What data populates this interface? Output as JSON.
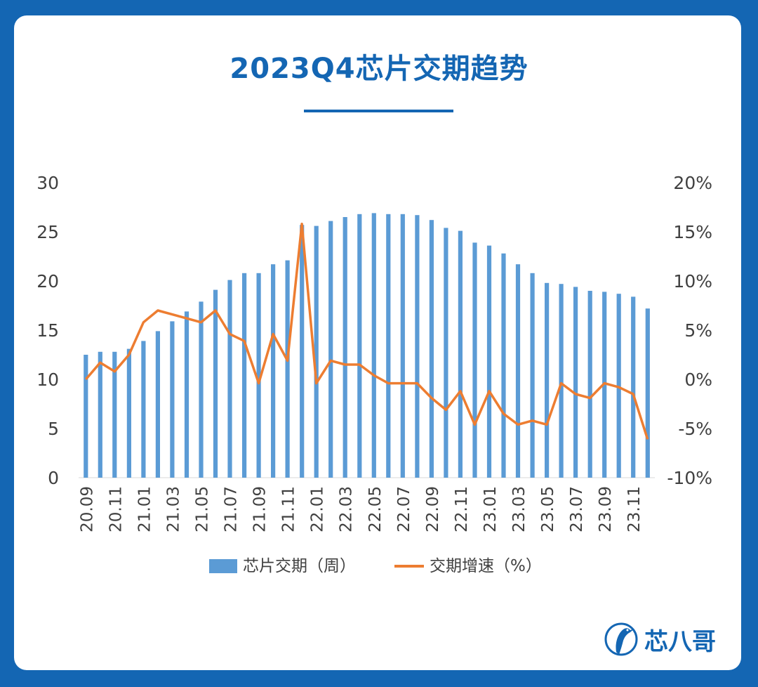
{
  "title": "2023Q4芯片交期趋势",
  "brand": {
    "name": "芯八哥"
  },
  "colors": {
    "background": "#1466b3",
    "bars": "#5b9bd5",
    "line": "#ed7d31",
    "title": "#1466b3",
    "axis_text": "#404040"
  },
  "chart_data": {
    "type": "bar+line",
    "categories": [
      "20.09",
      "20.10",
      "20.11",
      "20.12",
      "21.01",
      "21.02",
      "21.03",
      "21.04",
      "21.05",
      "21.06",
      "21.07",
      "21.08",
      "21.09",
      "21.10",
      "21.11",
      "21.12",
      "22.01",
      "22.02",
      "22.03",
      "22.04",
      "22.05",
      "22.06",
      "22.07",
      "22.08",
      "22.09",
      "22.10",
      "22.11",
      "22.12",
      "23.01",
      "23.02",
      "23.03",
      "23.04",
      "23.05",
      "23.06",
      "23.07",
      "23.08",
      "23.09",
      "23.10",
      "23.11",
      "23.12"
    ],
    "x_tick_labels": [
      "20.09",
      "20.11",
      "21.01",
      "21.03",
      "21.05",
      "21.07",
      "21.09",
      "21.11",
      "22.01",
      "22.03",
      "22.05",
      "22.07",
      "22.09",
      "22.11",
      "23.01",
      "23.03",
      "23.05",
      "23.07",
      "23.09",
      "23.11"
    ],
    "series": [
      {
        "name": "芯片交期（周）",
        "type": "bar",
        "axis": "left",
        "values": [
          12.5,
          12.8,
          12.8,
          13.1,
          13.9,
          14.9,
          15.9,
          16.9,
          17.9,
          19.1,
          20.1,
          20.8,
          20.8,
          21.7,
          22.1,
          25.7,
          25.6,
          26.1,
          26.5,
          26.8,
          26.9,
          26.8,
          26.8,
          26.7,
          26.2,
          25.4,
          25.1,
          23.9,
          23.6,
          22.8,
          21.7,
          20.8,
          19.8,
          19.7,
          19.4,
          19.0,
          18.9,
          18.7,
          18.4,
          17.2
        ]
      },
      {
        "name": "交期增速（%）",
        "type": "line",
        "axis": "right",
        "values": [
          0.0,
          1.7,
          0.8,
          2.5,
          5.8,
          7.0,
          6.6,
          6.2,
          5.8,
          7.0,
          4.6,
          3.9,
          -0.4,
          4.6,
          1.9,
          15.8,
          -0.4,
          1.9,
          1.5,
          1.5,
          0.4,
          -0.4,
          -0.4,
          -0.4,
          -1.9,
          -3.1,
          -1.2,
          -4.6,
          -1.2,
          -3.5,
          -4.6,
          -4.2,
          -4.6,
          -0.4,
          -1.5,
          -1.9,
          -0.4,
          -0.8,
          -1.5,
          -6.1
        ]
      }
    ],
    "y_left": {
      "ticks": [
        "0",
        "5",
        "10",
        "15",
        "20",
        "25",
        "30"
      ],
      "range": [
        0,
        30
      ]
    },
    "y_right": {
      "ticks": [
        "-10%",
        "-5%",
        "0%",
        "5%",
        "10%",
        "15%",
        "20%"
      ],
      "range": [
        -10,
        20
      ]
    },
    "legend_position": "bottom",
    "grid": false
  }
}
